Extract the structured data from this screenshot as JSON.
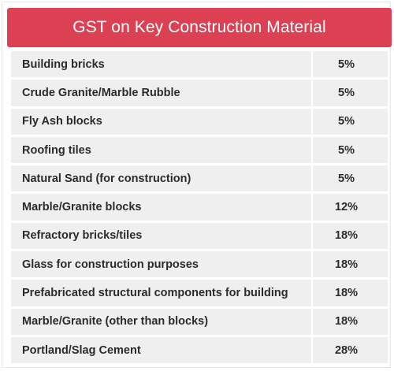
{
  "header": {
    "title": "GST on Key Construction Material"
  },
  "colors": {
    "header_bg": "#dc4153",
    "row_bg": "#efefef"
  },
  "table": {
    "rows": [
      {
        "material": "Building bricks",
        "rate": "5%"
      },
      {
        "material": "Crude Granite/Marble Rubble",
        "rate": "5%"
      },
      {
        "material": "Fly Ash blocks",
        "rate": "5%"
      },
      {
        "material": "Roofing tiles",
        "rate": "5%"
      },
      {
        "material": "Natural Sand (for construction)",
        "rate": "5%"
      },
      {
        "material": "Marble/Granite blocks",
        "rate": "12%"
      },
      {
        "material": "Refractory bricks/tiles",
        "rate": "18%"
      },
      {
        "material": "Glass for construction purposes",
        "rate": "18%"
      },
      {
        "material": "Prefabricated structural components for building",
        "rate": "18%"
      },
      {
        "material": "Marble/Granite (other than blocks)",
        "rate": "18%"
      },
      {
        "material": "Portland/Slag Cement",
        "rate": "28%"
      }
    ]
  }
}
